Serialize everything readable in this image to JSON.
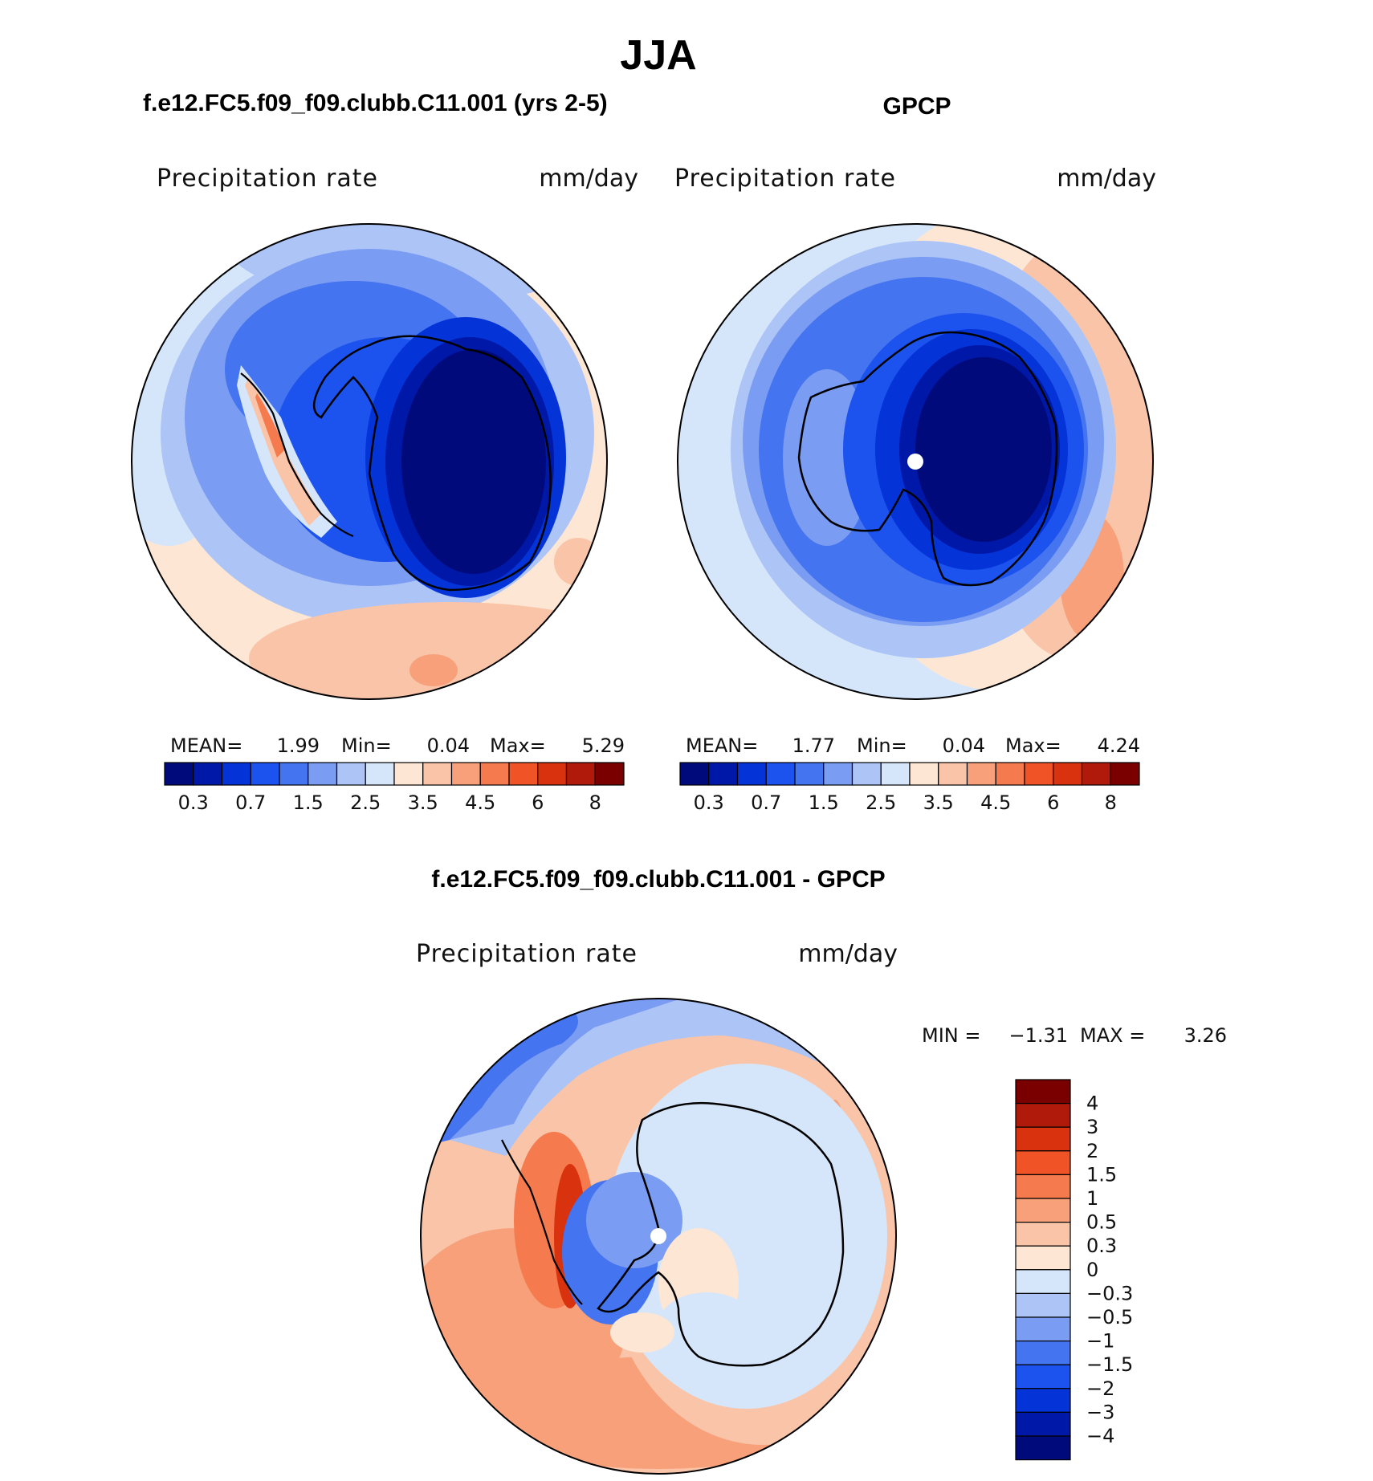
{
  "main_title": "JJA",
  "panels": {
    "model": {
      "title": "f.e12.FC5.f09_f09.clubb.C11.001 (yrs 2-5)",
      "variable": "Precipitation rate",
      "units": "mm/day",
      "mean_label": "MEAN=",
      "mean_value": "1.99",
      "min_label": "Min=",
      "min_value": "0.04",
      "max_label": "Max=",
      "max_value": "5.29"
    },
    "obs": {
      "title": "GPCP",
      "variable": "Precipitation rate",
      "units": "mm/day",
      "mean_label": "MEAN=",
      "mean_value": "1.77",
      "min_label": "Min=",
      "min_value": "0.04",
      "max_label": "Max=",
      "max_value": "4.24"
    },
    "diff": {
      "title": "f.e12.FC5.f09_f09.clubb.C11.001 - GPCP",
      "variable": "Precipitation rate",
      "units": "mm/day",
      "min_label": "MIN =",
      "min_value": "−1.31",
      "max_label": "MAX =",
      "max_value": "3.26"
    }
  },
  "abs_colorbar": {
    "colors": [
      "#000a7a",
      "#0018a8",
      "#0434d8",
      "#1c52ee",
      "#4474f0",
      "#7a9cf2",
      "#acc4f6",
      "#d6e6fa",
      "#fde6d4",
      "#f9c4a8",
      "#f7a07a",
      "#f57a4e",
      "#f05426",
      "#d8320e",
      "#b01a0a",
      "#7a0000"
    ],
    "labels": [
      "0.3",
      "0.7",
      "1.5",
      "2.5",
      "3.5",
      "4.5",
      "6",
      "8"
    ]
  },
  "diff_colorbar": {
    "colors": [
      "#000a7a",
      "#0018a8",
      "#0434d8",
      "#1c52ee",
      "#4474f0",
      "#7a9cf2",
      "#acc4f6",
      "#d6e6fa",
      "#fde6d4",
      "#f9c4a8",
      "#f7a07a",
      "#f57a4e",
      "#f05426",
      "#d8320e",
      "#b01a0a",
      "#7a0000"
    ],
    "labels": [
      "4",
      "3",
      "2",
      "1.5",
      "1",
      "0.5",
      "0.3",
      "0",
      "−0.3",
      "−0.5",
      "−1",
      "−1.5",
      "−2",
      "−3",
      "−4"
    ]
  }
}
